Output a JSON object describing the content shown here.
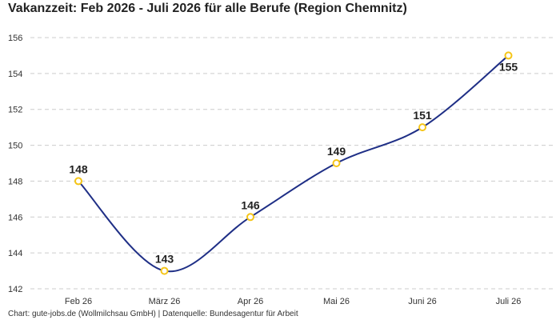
{
  "header": {
    "title": "Vakanzzeit: Feb 2026 - Juli 2026 für alle Berufe (Region Chemnitz)"
  },
  "footer": {
    "source": "Chart: gute-jobs.de (Wollmilchsau GmbH) | Datenquelle: Bundesagentur für Arbeit"
  },
  "chart_data": {
    "type": "line",
    "title": "Vakanzzeit: Feb 2026 - Juli 2026 für alle Berufe (Region Chemnitz)",
    "categories": [
      "Feb 26",
      "März 26",
      "Apr 26",
      "Mai 26",
      "Juni 26",
      "Juli 26"
    ],
    "values": [
      148,
      143,
      146,
      149,
      151,
      155
    ],
    "data_labels": [
      "148",
      "143",
      "146",
      "149",
      "151",
      "155"
    ],
    "yticks": [
      142,
      144,
      146,
      148,
      150,
      152,
      154,
      156
    ],
    "ytick_labels": [
      "142",
      "144",
      "146",
      "148",
      "150",
      "152",
      "154",
      "156"
    ],
    "ylim": [
      142,
      156
    ],
    "xlabel": "",
    "ylabel": "",
    "grid": true,
    "colors": {
      "line": "#1f2f86",
      "marker_fill": "#ffffff",
      "marker_stroke": "#f5c518",
      "grid": "#cccccc"
    }
  }
}
